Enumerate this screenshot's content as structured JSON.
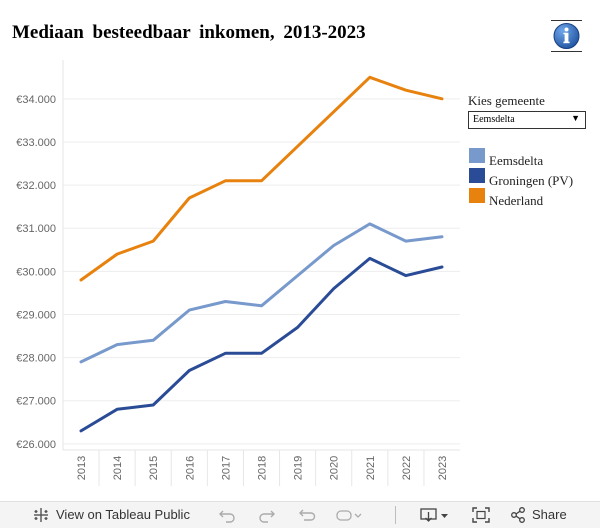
{
  "header": {
    "title": "Mediaan  besteedbaar  inkomen,  2013-2023",
    "info_icon": "info-icon"
  },
  "filter": {
    "label": "Kies  gemeente",
    "selected": "Eemsdelta"
  },
  "legend": [
    {
      "name": "Eemsdelta",
      "color": "#7799cc"
    },
    {
      "name": "Groningen  (PV)",
      "color": "#2a4b96"
    },
    {
      "name": "Nederland",
      "color": "#e8820e"
    }
  ],
  "chart_data": {
    "type": "line",
    "title": "Mediaan besteedbaar inkomen, 2013-2023",
    "x": [
      "2013",
      "2014",
      "2015",
      "2016",
      "2017",
      "2018",
      "2019",
      "2020",
      "2021",
      "2022",
      "2023"
    ],
    "y_ticks": [
      "€26.000",
      "€27.000",
      "€28.000",
      "€29.000",
      "€30.000",
      "€31.000",
      "€32.000",
      "€33.000",
      "€34.000"
    ],
    "y_tick_values": [
      26000,
      27000,
      28000,
      29000,
      30000,
      31000,
      32000,
      33000,
      34000
    ],
    "ylim": [
      25950,
      34900
    ],
    "series": [
      {
        "name": "Eemsdelta",
        "color": "#7799cc",
        "values": [
          27900,
          28300,
          28400,
          29100,
          29300,
          29200,
          29900,
          30600,
          31100,
          30700,
          30800
        ]
      },
      {
        "name": "Groningen (PV)",
        "color": "#2a4b96",
        "values": [
          26300,
          26800,
          26900,
          27700,
          28100,
          28100,
          28700,
          29600,
          30300,
          29900,
          30100
        ]
      },
      {
        "name": "Nederland",
        "color": "#e8820e",
        "values": [
          29800,
          30400,
          30700,
          31700,
          32100,
          32100,
          32900,
          33700,
          34500,
          34200,
          34000
        ]
      }
    ]
  },
  "toolbar": {
    "view_label": "View on Tableau Public",
    "share_label": "Share"
  }
}
